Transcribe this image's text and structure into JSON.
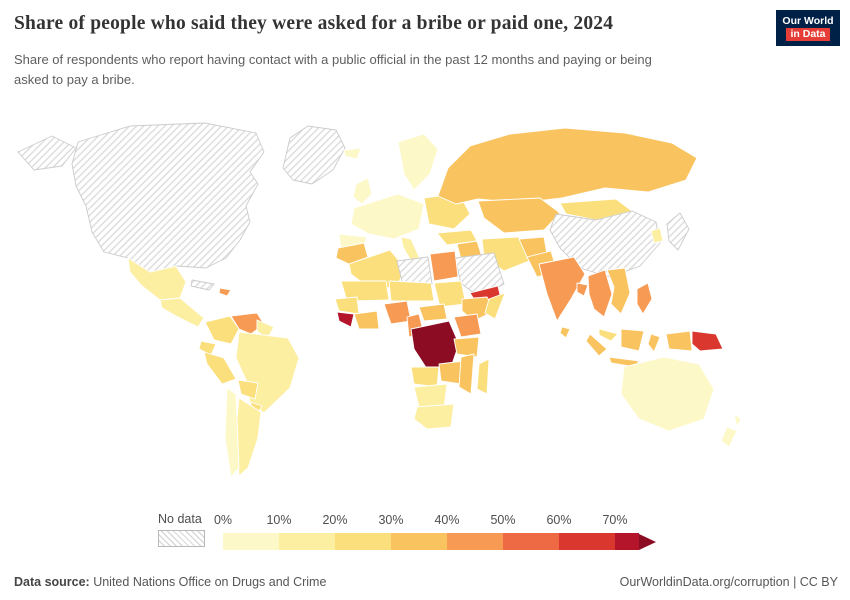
{
  "header": {
    "title": "Share of people who said they were asked for a bribe or paid one, 2024",
    "subtitle": "Share of respondents who report having contact with a public official in the past 12 months and paying or being asked to pay a bribe.",
    "logo": {
      "line1": "Our World",
      "line2": "in Data",
      "bg_color": "#002147",
      "accent_color": "#e63e36"
    }
  },
  "footer": {
    "source_label": "Data source:",
    "source_text": " United Nations Office on Drugs and Crime",
    "right_text": "OurWorldinData.org/corruption | CC BY"
  },
  "chart_data": {
    "type": "heatmap",
    "subtype": "choropleth-world-map",
    "title": "Share of people who said they were asked for a bribe or paid one, 2024",
    "unit": "%",
    "legend": {
      "no_data_label": "No data",
      "tick_labels": [
        "0%",
        "10%",
        "20%",
        "30%",
        "40%",
        "50%",
        "60%",
        "70%"
      ],
      "bin_colors": [
        "#fdf8c7",
        "#fcefa2",
        "#fbdf7c",
        "#f9c45f",
        "#f79a53",
        "#ee6a44",
        "#da382f"
      ],
      "arrow_colors": [
        "#b5152b",
        "#8c0d23"
      ]
    },
    "regions": {
      "greenland": {
        "name": "Greenland",
        "no_data": true
      },
      "north-america": {
        "name": "Canada and United States",
        "no_data": true
      },
      "cuba": {
        "name": "Cuba",
        "no_data": true
      },
      "china": {
        "name": "China",
        "no_data": true
      },
      "japan": {
        "name": "Japan",
        "no_data": true
      },
      "saudi-arabia": {
        "name": "Saudi Arabia",
        "no_data": true
      },
      "libya": {
        "name": "Libya",
        "no_data": true
      },
      "mexico": {
        "name": "Mexico",
        "value": 14,
        "color": "#fcefa2"
      },
      "central-america": {
        "name": "Central America",
        "value": 15,
        "color": "#fcefa2"
      },
      "dominican-republic": {
        "name": "Dominican Republic",
        "value": 42,
        "color": "#f79a53"
      },
      "colombia": {
        "name": "Colombia",
        "value": 22,
        "color": "#fbdf7c"
      },
      "venezuela": {
        "name": "Venezuela",
        "value": 44,
        "color": "#f79a53"
      },
      "guyanas": {
        "name": "Guyana and Suriname",
        "value": 15,
        "color": "#fcefa2"
      },
      "ecuador": {
        "name": "Ecuador",
        "value": 25,
        "color": "#fbdf7c"
      },
      "peru": {
        "name": "Peru",
        "value": 28,
        "color": "#fbdf7c"
      },
      "brazil": {
        "name": "Brazil",
        "value": 13,
        "color": "#fcefa2"
      },
      "bolivia": {
        "name": "Bolivia",
        "value": 24,
        "color": "#fbdf7c"
      },
      "paraguay": {
        "name": "Paraguay",
        "value": 22,
        "color": "#fbdf7c"
      },
      "chile": {
        "name": "Chile",
        "value": 5,
        "color": "#fdf8c7"
      },
      "argentina": {
        "name": "Argentina",
        "value": 12,
        "color": "#fcefa2"
      },
      "iceland": {
        "name": "Iceland",
        "value": 3,
        "color": "#fdf8c7"
      },
      "united-kingdom": {
        "name": "United Kingdom and Ireland",
        "value": 2,
        "color": "#fdf8c7"
      },
      "scandinavia": {
        "name": "Scandinavia",
        "value": 2,
        "color": "#fdf8c7"
      },
      "western-europe": {
        "name": "Western Europe",
        "value": 5,
        "color": "#fdf8c7"
      },
      "iberia": {
        "name": "Spain and Portugal",
        "value": 4,
        "color": "#fdf8c7"
      },
      "italy": {
        "name": "Italy",
        "value": 12,
        "color": "#fcefa2"
      },
      "eastern-europe": {
        "name": "Eastern Europe and Ukraine",
        "value": 24,
        "color": "#fbdf7c"
      },
      "turkey": {
        "name": "Turkey",
        "value": 24,
        "color": "#fbdf7c"
      },
      "russia": {
        "name": "Russia",
        "value": 30,
        "color": "#f9c45f"
      },
      "kazakhstan": {
        "name": "Kazakhstan and Central Asia",
        "value": 32,
        "color": "#f9c45f"
      },
      "mongolia": {
        "name": "Mongolia",
        "value": 25,
        "color": "#fbdf7c"
      },
      "south-korea": {
        "name": "South Korea",
        "value": 10,
        "color": "#fcefa2"
      },
      "iraq": {
        "name": "Iraq",
        "value": 35,
        "color": "#f9c45f"
      },
      "iran": {
        "name": "Iran",
        "value": 25,
        "color": "#fbdf7c"
      },
      "afghanistan": {
        "name": "Afghanistan",
        "value": 35,
        "color": "#f9c45f"
      },
      "pakistan": {
        "name": "Pakistan",
        "value": 32,
        "color": "#f9c45f"
      },
      "india": {
        "name": "India",
        "value": 42,
        "color": "#f79a53"
      },
      "sri-lanka": {
        "name": "Sri Lanka",
        "value": 30,
        "color": "#f9c45f"
      },
      "bangladesh": {
        "name": "Bangladesh",
        "value": 45,
        "color": "#f79a53"
      },
      "myanmar-thailand": {
        "name": "Myanmar and Thailand",
        "value": 40,
        "color": "#f79a53"
      },
      "vietnam": {
        "name": "Vietnam, Laos and Cambodia",
        "value": 35,
        "color": "#f9c45f"
      },
      "malaysia": {
        "name": "Malaysia",
        "value": 22,
        "color": "#fbdf7c"
      },
      "indonesia": {
        "name": "Indonesia",
        "value": 30,
        "color": "#f9c45f"
      },
      "papua-new-guinea": {
        "name": "Papua New Guinea",
        "value": 62,
        "color": "#da382f"
      },
      "philippines": {
        "name": "Philippines",
        "value": 40,
        "color": "#f79a53"
      },
      "morocco": {
        "name": "Morocco",
        "value": 31,
        "color": "#f9c45f"
      },
      "algeria": {
        "name": "Algeria",
        "value": 25,
        "color": "#fbdf7c"
      },
      "egypt": {
        "name": "Egypt",
        "value": 42,
        "color": "#f79a53"
      },
      "mauritania-mali": {
        "name": "Mauritania and Mali",
        "value": 25,
        "color": "#fbdf7c"
      },
      "niger-chad": {
        "name": "Niger and Chad",
        "value": 25,
        "color": "#fbdf7c"
      },
      "sudan": {
        "name": "Sudan",
        "value": 25,
        "color": "#fbdf7c"
      },
      "ethiopia": {
        "name": "Ethiopia",
        "value": 30,
        "color": "#f9c45f"
      },
      "somalia": {
        "name": "Somalia",
        "value": 25,
        "color": "#fbdf7c"
      },
      "senegal-guinea": {
        "name": "Senegal and Guinea",
        "value": 25,
        "color": "#fbdf7c"
      },
      "liberia-sierra-leone": {
        "name": "Liberia and Sierra Leone",
        "value": 72,
        "color": "#b5152b"
      },
      "ghana-cote-divoire": {
        "name": "Ghana and Côte d'Ivoire",
        "value": 33,
        "color": "#f9c45f"
      },
      "nigeria": {
        "name": "Nigeria",
        "value": 44,
        "color": "#f79a53"
      },
      "cameroon": {
        "name": "Cameroon",
        "value": 45,
        "color": "#f79a53"
      },
      "central-african-republic": {
        "name": "Central African Republic",
        "value": 35,
        "color": "#f9c45f"
      },
      "democratic-republic-of-congo": {
        "name": "Democratic Republic of Congo",
        "value": 80,
        "color": "#8c0d23"
      },
      "uganda-kenya": {
        "name": "Uganda and Kenya",
        "value": 40,
        "color": "#f79a53"
      },
      "tanzania": {
        "name": "Tanzania",
        "value": 30,
        "color": "#f9c45f"
      },
      "angola": {
        "name": "Angola",
        "value": 25,
        "color": "#fbdf7c"
      },
      "zambia-zimbabwe": {
        "name": "Zambia and Zimbabwe",
        "value": 33,
        "color": "#f9c45f"
      },
      "mozambique": {
        "name": "Mozambique",
        "value": 30,
        "color": "#f9c45f"
      },
      "namibia-botswana": {
        "name": "Namibia and Botswana",
        "value": 15,
        "color": "#fcefa2"
      },
      "south-africa": {
        "name": "South Africa",
        "value": 18,
        "color": "#fcefa2"
      },
      "madagascar": {
        "name": "Madagascar",
        "value": 28,
        "color": "#fbdf7c"
      },
      "yemen": {
        "name": "Yemen",
        "value": 65,
        "color": "#da382f"
      },
      "australia": {
        "name": "Australia",
        "value": 4,
        "color": "#fdf8c7"
      },
      "new-zealand": {
        "name": "New Zealand",
        "value": 3,
        "color": "#fdf8c7"
      }
    }
  }
}
